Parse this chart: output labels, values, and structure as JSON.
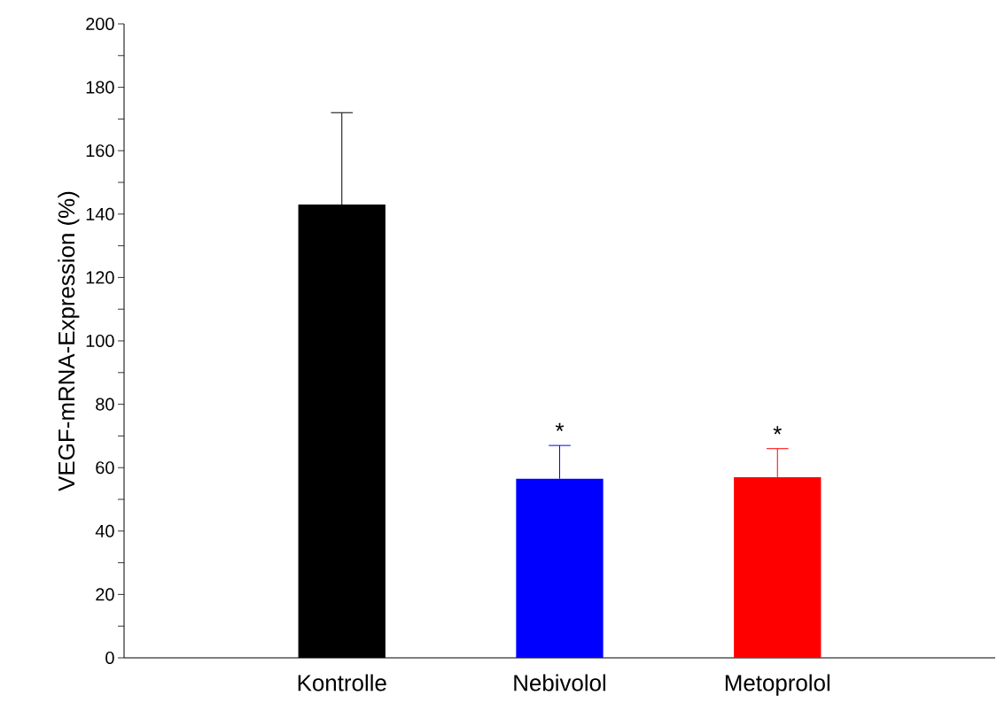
{
  "chart_data": {
    "type": "bar",
    "ylabel": "VEGF-mRNA-Expression (%)",
    "categories": [
      "Kontrolle",
      "Nebivolol",
      "Metoprolol"
    ],
    "values": [
      143,
      56.5,
      57
    ],
    "colors": [
      "#000000",
      "#0000ff",
      "#ff0000"
    ],
    "errors": [
      [
        143,
        172
      ],
      [
        56.5,
        67
      ],
      [
        57,
        66
      ]
    ],
    "ylim": [
      0,
      200
    ],
    "yticks": [
      0,
      {
        "value": 10,
        "label": null
      },
      20,
      {
        "value": 30,
        "label": null
      },
      40,
      {
        "value": 50,
        "label": null
      },
      60,
      {
        "value": 70,
        "label": null
      },
      80,
      {
        "value": 90,
        "label": null
      },
      100,
      {
        "value": 110,
        "label": null
      },
      120,
      {
        "value": 130,
        "label": null
      },
      140,
      {
        "value": 150,
        "label": null
      },
      160,
      {
        "value": 170,
        "label": null
      },
      180,
      {
        "value": 190,
        "label": null
      },
      200
    ],
    "annotations": [
      "*",
      "*"
    ],
    "grid": false
  }
}
